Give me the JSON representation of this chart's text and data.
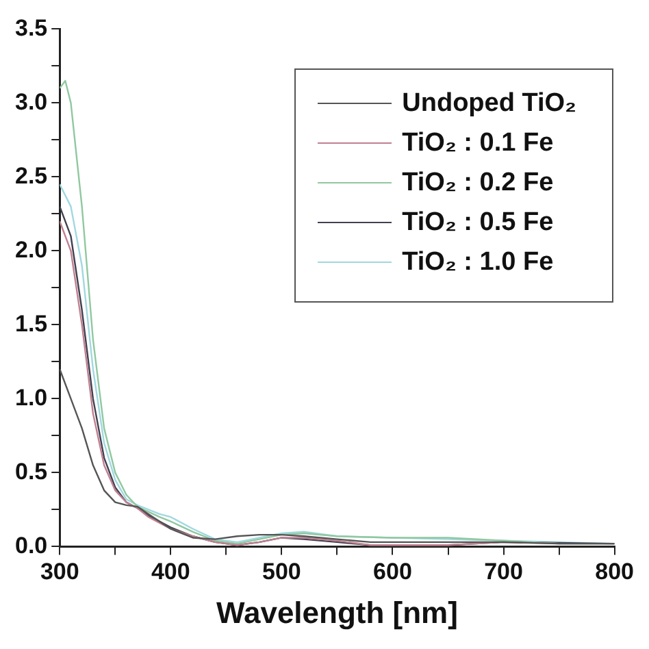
{
  "chart_data": {
    "type": "line",
    "xlabel": "Wavelength [nm]",
    "legend": "top right",
    "marker": "none",
    "xlim": [
      300,
      800
    ],
    "ylim": [
      0,
      3.5
    ],
    "xticks": [
      300,
      {
        "value": 350,
        "label": null
      },
      400,
      {
        "value": 450,
        "label": null
      },
      500,
      {
        "value": 550,
        "label": null
      },
      600,
      {
        "value": 650,
        "label": null
      },
      700,
      {
        "value": 750,
        "label": null
      },
      800
    ],
    "yticks": [
      {
        "value": 0,
        "label": "0.0"
      },
      {
        "value": 0.25,
        "label": null
      },
      {
        "value": 0.5,
        "label": "0.5"
      },
      {
        "value": 0.75,
        "label": null
      },
      {
        "value": 1,
        "label": "1.0"
      },
      {
        "value": 1.25,
        "label": null
      },
      {
        "value": 1.5,
        "label": "1.5"
      },
      {
        "value": 1.75,
        "label": null
      },
      {
        "value": 2,
        "label": "2.0"
      },
      {
        "value": 2.25,
        "label": null
      },
      {
        "value": 2.5,
        "label": "2.5"
      },
      {
        "value": 2.75,
        "label": null
      },
      {
        "value": 3,
        "label": "3.0"
      },
      {
        "value": 3.25,
        "label": null
      },
      {
        "value": 3.5,
        "label": "3.5"
      }
    ],
    "series": [
      {
        "name": "Undoped TiO₂",
        "color": "#555555",
        "x": [
          300,
          310,
          320,
          330,
          340,
          350,
          360,
          370,
          380,
          400,
          420,
          440,
          460,
          480,
          500,
          520,
          550,
          580,
          600,
          650,
          700,
          750,
          800
        ],
        "values": [
          1.2,
          1.0,
          0.8,
          0.55,
          0.38,
          0.3,
          0.28,
          0.27,
          0.22,
          0.12,
          0.06,
          0.05,
          0.07,
          0.08,
          0.08,
          0.07,
          0.05,
          0.03,
          0.03,
          0.03,
          0.03,
          0.02,
          0.02
        ]
      },
      {
        "name": "TiO₂ : 0.1 Fe",
        "color": "#c08090",
        "x": [
          300,
          310,
          320,
          330,
          340,
          350,
          360,
          370,
          380,
          400,
          420,
          440,
          460,
          480,
          500,
          520,
          550,
          580,
          600,
          650,
          700,
          750,
          800
        ],
        "values": [
          2.2,
          2.0,
          1.5,
          0.9,
          0.55,
          0.38,
          0.3,
          0.26,
          0.2,
          0.12,
          0.07,
          0.03,
          0.01,
          0.03,
          0.06,
          0.06,
          0.04,
          0.01,
          0.01,
          0.01,
          0.03,
          0.02,
          0.02
        ]
      },
      {
        "name": "TiO₂ : 0.2 Fe",
        "color": "#90c8a0",
        "x": [
          300,
          305,
          310,
          320,
          330,
          340,
          350,
          360,
          370,
          390,
          400,
          420,
          440,
          460,
          480,
          500,
          520,
          550,
          600,
          650,
          700,
          750,
          800
        ],
        "values": [
          3.1,
          3.15,
          3.0,
          2.3,
          1.4,
          0.8,
          0.5,
          0.35,
          0.27,
          0.2,
          0.17,
          0.1,
          0.04,
          0.02,
          0.05,
          0.08,
          0.09,
          0.07,
          0.06,
          0.06,
          0.04,
          0.02,
          0.02
        ]
      },
      {
        "name": "TiO₂ : 0.5 Fe",
        "color": "#404050",
        "x": [
          300,
          310,
          320,
          330,
          340,
          350,
          360,
          370,
          380,
          400,
          420,
          440,
          460,
          480,
          500,
          520,
          550,
          580,
          600,
          650,
          700,
          800
        ],
        "values": [
          2.3,
          2.1,
          1.6,
          1.0,
          0.6,
          0.4,
          0.3,
          0.26,
          0.21,
          0.13,
          0.07,
          0.03,
          0.01,
          0.03,
          0.06,
          0.05,
          0.03,
          0.01,
          0.01,
          0.01,
          0.03,
          0.02
        ]
      },
      {
        "name": "TiO₂ : 1.0 Fe",
        "color": "#a0d8e0",
        "x": [
          300,
          310,
          320,
          330,
          340,
          350,
          360,
          370,
          390,
          400,
          420,
          440,
          460,
          480,
          500,
          520,
          550,
          600,
          650,
          700,
          800
        ],
        "values": [
          2.45,
          2.3,
          1.9,
          1.2,
          0.7,
          0.45,
          0.32,
          0.28,
          0.22,
          0.2,
          0.12,
          0.05,
          0.03,
          0.06,
          0.09,
          0.1,
          0.07,
          0.06,
          0.05,
          0.04,
          0.02
        ]
      }
    ]
  }
}
